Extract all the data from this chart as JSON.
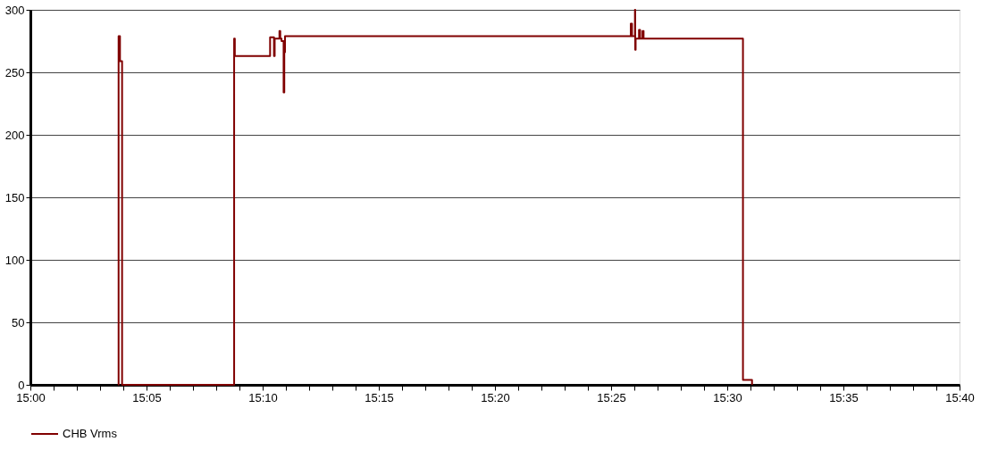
{
  "chart_data": {
    "type": "step",
    "x": [
      15.063,
      15.0633,
      15.0643,
      15.0658,
      15.1462,
      15.1467,
      15.172,
      15.1748,
      15.1753,
      15.1787,
      15.1793,
      15.1802,
      15.1817,
      15.1822,
      15.1827,
      15.4308,
      15.4317,
      15.4338,
      15.434,
      15.4343,
      15.4367,
      15.4375,
      15.4392,
      15.44,
      15.5113,
      15.5178
    ],
    "series": [
      {
        "name": "CHB Vrms",
        "color": "#800000",
        "values": [
          0,
          279,
          259,
          0,
          277,
          263,
          278,
          263,
          277,
          283,
          277,
          275,
          234,
          266,
          279,
          289,
          279,
          300,
          268,
          277,
          284,
          277,
          283,
          277,
          4,
          0
        ]
      }
    ],
    "xlim": [
      15,
      15.6667
    ],
    "xticks": [
      {
        "value": 15,
        "label": "15:00"
      },
      {
        "value": 15.0167,
        "label": null
      },
      {
        "value": 15.0333,
        "label": null
      },
      {
        "value": 15.05,
        "label": null
      },
      {
        "value": 15.0667,
        "label": null
      },
      {
        "value": 15.0833,
        "label": "15:05"
      },
      {
        "value": 15.1,
        "label": null
      },
      {
        "value": 15.1167,
        "label": null
      },
      {
        "value": 15.1333,
        "label": null
      },
      {
        "value": 15.15,
        "label": null
      },
      {
        "value": 15.1667,
        "label": "15:10"
      },
      {
        "value": 15.1833,
        "label": null
      },
      {
        "value": 15.2,
        "label": null
      },
      {
        "value": 15.2167,
        "label": null
      },
      {
        "value": 15.2333,
        "label": null
      },
      {
        "value": 15.25,
        "label": "15:15"
      },
      {
        "value": 15.2667,
        "label": null
      },
      {
        "value": 15.2833,
        "label": null
      },
      {
        "value": 15.3,
        "label": null
      },
      {
        "value": 15.3167,
        "label": null
      },
      {
        "value": 15.3333,
        "label": "15:20"
      },
      {
        "value": 15.35,
        "label": null
      },
      {
        "value": 15.3667,
        "label": null
      },
      {
        "value": 15.3833,
        "label": null
      },
      {
        "value": 15.4,
        "label": null
      },
      {
        "value": 15.4167,
        "label": "15:25"
      },
      {
        "value": 15.4333,
        "label": null
      },
      {
        "value": 15.45,
        "label": null
      },
      {
        "value": 15.4667,
        "label": null
      },
      {
        "value": 15.4833,
        "label": null
      },
      {
        "value": 15.5,
        "label": "15:30"
      },
      {
        "value": 15.5167,
        "label": null
      },
      {
        "value": 15.5333,
        "label": null
      },
      {
        "value": 15.55,
        "label": null
      },
      {
        "value": 15.5667,
        "label": null
      },
      {
        "value": 15.5833,
        "label": "15:35"
      },
      {
        "value": 15.6,
        "label": null
      },
      {
        "value": 15.6167,
        "label": null
      },
      {
        "value": 15.6333,
        "label": null
      },
      {
        "value": 15.65,
        "label": null
      },
      {
        "value": 15.6667,
        "label": "15:40"
      }
    ],
    "ylim": [
      0,
      300
    ],
    "yticks": [
      0,
      50,
      100,
      150,
      200,
      250,
      300
    ],
    "grid": "y",
    "legend": "bottom"
  }
}
